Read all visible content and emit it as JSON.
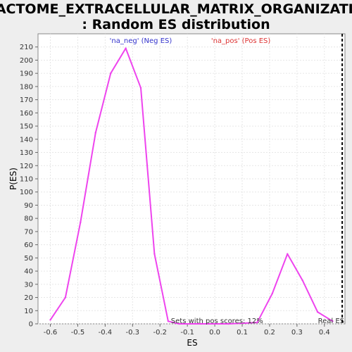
{
  "chart_data": {
    "type": "line",
    "title_line1": "REACTOME_EXTRACELLULAR_MATRIX_ORGANIZATION",
    "title_line2": ": Random ES distribution",
    "xlabel": "ES",
    "ylabel": "P(ES)",
    "xlim": [
      -0.645,
      0.475
    ],
    "ylim": [
      0,
      220
    ],
    "xticks": [
      -0.6,
      -0.5,
      -0.4,
      -0.3,
      -0.2,
      -0.1,
      0.0,
      0.1,
      0.2,
      0.3,
      0.4
    ],
    "xtick_labels": [
      "-0.6",
      "-0.5",
      "-0.4",
      "-0.3",
      "-0.2",
      "-0.1",
      "0.0",
      "0.1",
      "0.2",
      "0.3",
      "0.4"
    ],
    "yticks": [
      0,
      10,
      20,
      30,
      40,
      50,
      60,
      70,
      80,
      90,
      100,
      110,
      120,
      130,
      140,
      150,
      160,
      170,
      180,
      190,
      200,
      210
    ],
    "grid": true,
    "series": [
      {
        "color": "#ee44ee",
        "x": [
          -0.6,
          -0.545,
          -0.49,
          -0.435,
          -0.38,
          -0.325,
          -0.27,
          -0.22,
          -0.17,
          -0.13,
          -0.05,
          0.05,
          0.155,
          0.21,
          0.265,
          0.32,
          0.375,
          0.43
        ],
        "y": [
          3,
          20,
          77,
          145,
          190,
          209,
          179,
          53,
          2,
          0,
          0,
          0,
          1,
          23,
          53,
          33,
          9,
          2
        ]
      }
    ],
    "annotations": {
      "neg_label": "'na_neg' (Neg ES)",
      "neg_color": "#3333cc",
      "pos_label": "'na_pos' (Pos ES)",
      "pos_color": "#dd3333",
      "pos_scores": "Sets with pos scores: 12%",
      "real_es_label": "Real ES",
      "real_es_value": 0.465
    }
  }
}
